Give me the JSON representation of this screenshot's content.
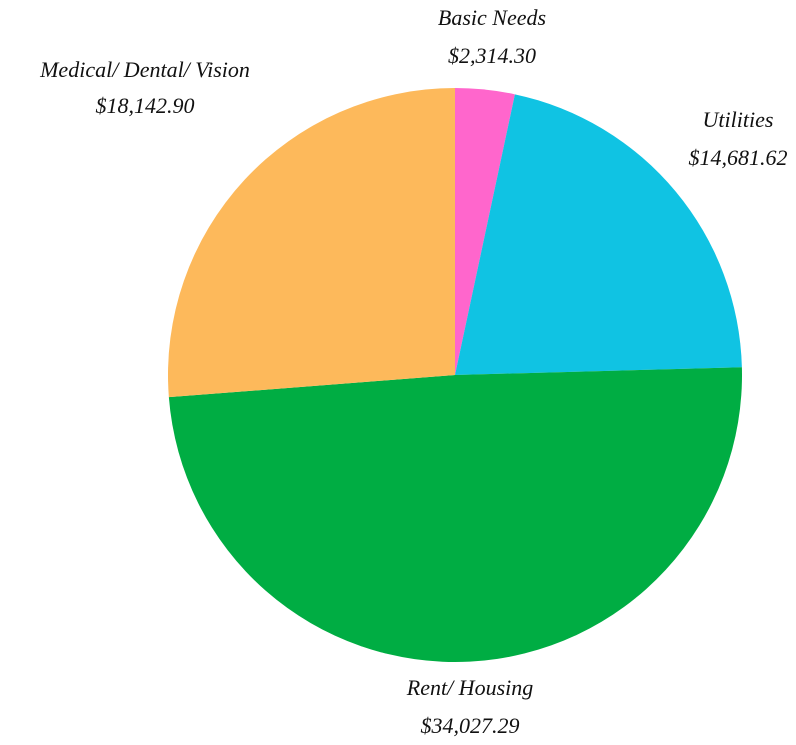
{
  "chart_data": {
    "type": "pie",
    "categories": [
      "Basic Needs",
      "Utilities",
      "Rent/ Housing",
      "Medical/ Dental/ Vision"
    ],
    "values": [
      2314.3,
      14681.62,
      34027.29,
      18142.9
    ],
    "value_labels": [
      "$2,314.30",
      "$14,681.62",
      "$34,027.29",
      "$18,142.90"
    ],
    "colors": [
      "#ff66cc",
      "#10c3e3",
      "#00ad43",
      "#fdb95b"
    ]
  }
}
